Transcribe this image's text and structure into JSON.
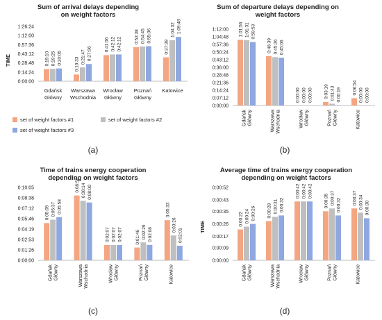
{
  "figure": {
    "panel_labels": [
      "(a)",
      "(b)",
      "(c)",
      "(d)"
    ],
    "colors": {
      "series1": "#f4a582",
      "series2": "#bfbfbf",
      "series3": "#8fa8e0",
      "axis": "#bfbfbf",
      "text": "#222222"
    }
  },
  "chart_data": [
    {
      "type": "bar",
      "title": "Sum of arrival delays depending on weight factors",
      "ylabel": "TIME",
      "categories": [
        "Gdańsk Główny",
        "Warszawa Wschodnia",
        "Wrocław Główny",
        "Poznań Główny",
        "Katowice"
      ],
      "yticks": [
        "0:00:00",
        "0:14:24",
        "0:28:48",
        "0:43:12",
        "0:57:36",
        "1:12:00",
        "1:26:24"
      ],
      "ylim": [
        "0:00:00",
        "1:26:24"
      ],
      "legend_position": "bottom",
      "series": [
        {
          "name": "set of weight factors #1",
          "values": [
            "0:19:10",
            "0:10:33",
            "0:41:06",
            "0:53:38",
            "0:37:39"
          ]
        },
        {
          "name": "set of weight factors #2",
          "values": [
            "0:19:25",
            "0:21:47",
            "0:42:12",
            "0:54:45",
            "1:04:32"
          ]
        },
        {
          "name": "set of weight factors #3",
          "values": [
            "0:20:05",
            "0:27:06",
            "0:42:12",
            "0:55:06",
            "1:09:48"
          ]
        }
      ]
    },
    {
      "type": "bar",
      "title": "Sum of departure delays depending on weight factors",
      "ylabel": "TIME",
      "categories": [
        "Gdańsk Główny",
        "Warszawa Wschodnia",
        "Wrocław Główny",
        "Poznań Główny",
        "Katowice"
      ],
      "yticks": [
        "0:00:00",
        "0:07:12",
        "0:14:24",
        "0:21:36",
        "0:28:48",
        "0:36:00",
        "0:43:12",
        "0:50:24",
        "0:57:36",
        "1:04:48",
        "1:12:00"
      ],
      "ylim": [
        "0:00:00",
        "1:12:00"
      ],
      "series": [
        {
          "name": "set of weight factors #1",
          "values": [
            "1:01:56",
            "0:46:39",
            "0:00:00",
            "0:03:19",
            "0:06:54"
          ]
        },
        {
          "name": "set of weight factors #2",
          "values": [
            "1:01:31",
            "0:45:36",
            "0:00:00",
            "0:01:43",
            "0:00:00"
          ]
        },
        {
          "name": "set of weight factors #3",
          "values": [
            "0:59:53",
            "0:45:06",
            "0:00:00",
            "0:00:19",
            "0:00:00"
          ]
        }
      ]
    },
    {
      "type": "bar",
      "title": "Time of trains energy cooperation depending on weight factors",
      "ylabel": "",
      "categories": [
        "Gdańsk Główny",
        "Warszawa Wschodnia",
        "Wrocław Główny",
        "Poznań Główny",
        "Katowice"
      ],
      "yticks": [
        "0:00:00",
        "0:01:26",
        "0:02:53",
        "0:04:19",
        "0:05:46",
        "0:07:12",
        "0:08:38",
        "0:10:05"
      ],
      "ylim": [
        "0:00:00",
        "0:10:05"
      ],
      "series": [
        {
          "name": "set of weight factors #1",
          "values": [
            "0:05:09",
            "0:08:58",
            "0:02:07",
            "0:01:46",
            "0:05:33"
          ]
        },
        {
          "name": "set of weight factors #2",
          "values": [
            "0:05:37",
            "0:08:14",
            "0:02:07",
            "0:02:29",
            "0:03:26"
          ]
        },
        {
          "name": "set of weight factors #3",
          "values": [
            "0:05:58",
            "0:08:00",
            "0:02:07",
            "0:02:08",
            "0:02:01"
          ]
        }
      ]
    },
    {
      "type": "bar",
      "title": "Average time of trains energy cooperation depending on weight factors",
      "ylabel": "TIME",
      "categories": [
        "Gdańsk Główny",
        "Warszawa Wschodnia",
        "Wrocław Główny",
        "Poznań Główny",
        "Katowice"
      ],
      "yticks": [
        "0:00:00",
        "0:00:09",
        "0:00:17",
        "0:00:26",
        "0:00:35",
        "0:00:43",
        "0:00:52"
      ],
      "ylim": [
        "0:00:00",
        "0:00:52"
      ],
      "series": [
        {
          "name": "set of weight factors #1",
          "values": [
            "0:00:22",
            "0:00:28",
            "0:00:42",
            "0:00:35",
            "0:00:37"
          ]
        },
        {
          "name": "set of weight factors #2",
          "values": [
            "0:00:24",
            "0:00:31",
            "0:00:42",
            "0:00:37",
            "0:00:34"
          ]
        },
        {
          "name": "set of weight factors #3",
          "values": [
            "0:00:26",
            "0:00:32",
            "0:00:42",
            "0:00:32",
            "0:00:30"
          ]
        }
      ]
    }
  ]
}
